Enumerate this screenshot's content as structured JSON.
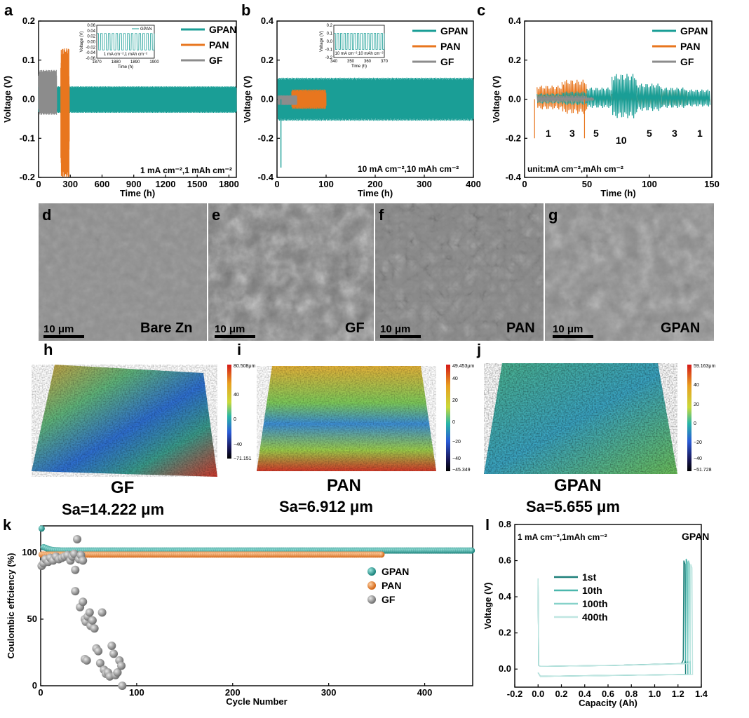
{
  "colors": {
    "GPAN": "#1a9e96",
    "PAN": "#e8761e",
    "GF": "#8c8c8c",
    "axis": "#000000"
  },
  "panels": {
    "a": {
      "letter": "a",
      "note": "1 mA cm⁻²,1 mAh cm⁻²",
      "inset_note": "1 mA cm⁻²,1 mAh cm⁻²",
      "inset_legend": "GPAN",
      "inset_xlabel": "Time (h)",
      "inset_ylabel": "Voltage (V)"
    },
    "b": {
      "letter": "b",
      "note": "10 mA cm⁻²,10 mAh cm⁻²",
      "inset_note": "10 mA cm⁻²,10 mAh cm⁻²",
      "inset_xlabel": "Time (h)",
      "inset_ylabel": "Voltage (V)"
    },
    "c": {
      "letter": "c",
      "note": "unit:mA cm⁻²,mAh cm⁻²",
      "rates": [
        "1",
        "3",
        "5",
        "10",
        "5",
        "3",
        "1"
      ]
    },
    "d": {
      "letter": "d",
      "label": "Bare Zn",
      "scale": "10 μm"
    },
    "e": {
      "letter": "e",
      "label": "GF",
      "scale": "10 μm"
    },
    "f": {
      "letter": "f",
      "label": "PAN",
      "scale": "10 μm"
    },
    "g": {
      "letter": "g",
      "label": "GPAN",
      "scale": "10 μm"
    },
    "h": {
      "letter": "h",
      "title": "GF",
      "sa": "Sa=14.222 μm",
      "cb_top": "80.508μm",
      "cb_bot": "−71.151",
      "cb_ticks": [
        "40",
        "0",
        "−40"
      ]
    },
    "i": {
      "letter": "i",
      "title": "PAN",
      "sa": "Sa=6.912 μm",
      "cb_top": "49.453μm",
      "cb_bot": "−45.349",
      "cb_ticks": [
        "40",
        "20",
        "0",
        "−20",
        "−40"
      ]
    },
    "j": {
      "letter": "j",
      "title": "GPAN",
      "sa": "Sa=5.655 μm",
      "cb_top": "59.163μm",
      "cb_bot": "−51.728",
      "cb_ticks": [
        "40",
        "20",
        "0",
        "−20",
        "−40"
      ]
    },
    "k": {
      "letter": "k"
    },
    "l": {
      "letter": "l",
      "note": "1 mA cm⁻²,1mAh cm⁻²",
      "tag": "GPAN"
    }
  },
  "chart_data": [
    {
      "id": "a",
      "type": "line",
      "xlabel": "Time (h)",
      "ylabel": "Voltage (V)",
      "xlim": [
        0,
        1870
      ],
      "ylim": [
        -0.2,
        0.2
      ],
      "xticks": [
        0,
        300,
        600,
        900,
        1200,
        1500,
        1800
      ],
      "yticks": [
        -0.2,
        -0.1,
        0.0,
        0.1,
        0.2
      ],
      "series": [
        {
          "name": "GPAN",
          "x_range": [
            0,
            1870
          ],
          "amplitude_upper": 0.033,
          "amplitude_lower": -0.035
        },
        {
          "name": "PAN",
          "x_range": [
            210,
            290
          ],
          "amplitude_upper": 0.13,
          "amplitude_lower": -0.2,
          "note": "short circuit near 285 h"
        },
        {
          "name": "GF",
          "x_range": [
            0,
            170
          ],
          "amplitude_upper": 0.075,
          "amplitude_lower": -0.04
        }
      ],
      "inset": {
        "xlim": [
          1870,
          1900
        ],
        "ylim": [
          -0.06,
          0.06
        ],
        "xticks": [
          1870,
          1880,
          1890,
          1900
        ],
        "yticks": [
          -0.06,
          -0.04,
          -0.02,
          0.0,
          0.02,
          0.04,
          0.06
        ],
        "cycle_period_h": 2
      }
    },
    {
      "id": "b",
      "type": "line",
      "xlabel": "Time (h)",
      "ylabel": "Voltage (V)",
      "xlim": [
        0,
        400
      ],
      "ylim": [
        -0.4,
        0.4
      ],
      "xticks": [
        0,
        100,
        200,
        300,
        400
      ],
      "yticks": [
        -0.4,
        -0.2,
        0.0,
        0.2,
        0.4
      ],
      "series": [
        {
          "name": "GPAN",
          "x_range": [
            0,
            400
          ],
          "amplitude_upper": 0.11,
          "amplitude_lower": -0.11
        },
        {
          "name": "PAN",
          "x_range": [
            0,
            100
          ],
          "amplitude_upper": 0.05,
          "amplitude_lower": -0.05
        },
        {
          "name": "GF",
          "x_range": [
            0,
            40
          ],
          "amplitude_upper": 0.02,
          "amplitude_lower": -0.03
        }
      ],
      "inset": {
        "xlim": [
          340,
          370
        ],
        "ylim": [
          -0.2,
          0.2
        ],
        "xticks": [
          340,
          350,
          360,
          370
        ],
        "yticks": [
          -0.2,
          -0.1,
          0.0,
          0.1,
          0.2
        ],
        "cycle_period_h": 2
      }
    },
    {
      "id": "c",
      "type": "line",
      "xlabel": "Time (h)",
      "ylabel": "Voltage (V)",
      "xlim": [
        0,
        150
      ],
      "ylim": [
        -0.4,
        0.4
      ],
      "xticks": [
        0,
        50,
        100,
        150
      ],
      "yticks": [
        -0.4,
        -0.2,
        0.0,
        0.2,
        0.4
      ],
      "series": [
        {
          "name": "GPAN",
          "segments": [
            [
              10,
              30,
              0.03
            ],
            [
              30,
              50,
              0.04
            ],
            [
              50,
              70,
              0.06
            ],
            [
              70,
              90,
              0.13
            ],
            [
              90,
              110,
              0.08
            ],
            [
              110,
              130,
              0.06
            ],
            [
              130,
              148,
              0.05
            ]
          ]
        },
        {
          "name": "PAN",
          "segments": [
            [
              10,
              30,
              0.07
            ],
            [
              30,
              50,
              0.1
            ],
            [
              50,
              70,
              0.03
            ],
            [
              70,
              90,
              0.03
            ],
            [
              90,
              110,
              0.05
            ],
            [
              110,
              130,
              0.05
            ],
            [
              130,
              148,
              0.02
            ]
          ]
        },
        {
          "name": "GF",
          "segments": [
            [
              10,
              30,
              0.02
            ],
            [
              30,
              50,
              0.02
            ],
            [
              50,
              55,
              0.01
            ]
          ]
        }
      ]
    },
    {
      "id": "k",
      "type": "scatter",
      "xlabel": "Cycle Number",
      "ylabel": "Coulombic effciency (%)",
      "xlim": [
        0,
        450
      ],
      "ylim": [
        0,
        120
      ],
      "xticks": [
        0,
        100,
        200,
        300,
        400
      ],
      "yticks": [
        0,
        50,
        100
      ],
      "series": [
        {
          "name": "GPAN",
          "x_range": [
            1,
            450
          ],
          "values_start": [
            118,
            108,
            104,
            102
          ],
          "plateau": 101.5
        },
        {
          "name": "PAN",
          "x_range": [
            1,
            355
          ],
          "plateau": 98.5
        },
        {
          "name": "GF",
          "points": [
            [
              1,
              90
            ],
            [
              3,
              92
            ],
            [
              5,
              95
            ],
            [
              8,
              93
            ],
            [
              10,
              96
            ],
            [
              13,
              94
            ],
            [
              16,
              97
            ],
            [
              19,
              95
            ],
            [
              22,
              96
            ],
            [
              25,
              97
            ],
            [
              28,
              98
            ],
            [
              31,
              94
            ],
            [
              33,
              97
            ],
            [
              35,
              99
            ],
            [
              36,
              87
            ],
            [
              38,
              110
            ],
            [
              40,
              95
            ],
            [
              42,
              98
            ],
            [
              44,
              94
            ],
            [
              36,
              71
            ],
            [
              41,
              59
            ],
            [
              44,
              63
            ],
            [
              46,
              50
            ],
            [
              47,
              48
            ],
            [
              49,
              52
            ],
            [
              51,
              55
            ],
            [
              52,
              45
            ],
            [
              54,
              49
            ],
            [
              56,
              43
            ],
            [
              58,
              28
            ],
            [
              60,
              26
            ],
            [
              62,
              17
            ],
            [
              64,
              55
            ],
            [
              66,
              12
            ],
            [
              68,
              9
            ],
            [
              70,
              10
            ],
            [
              72,
              7
            ],
            [
              74,
              30
            ],
            [
              76,
              24
            ],
            [
              78,
              8
            ],
            [
              80,
              10
            ],
            [
              82,
              19
            ],
            [
              84,
              15
            ],
            [
              46,
              20
            ],
            [
              48,
              19
            ],
            [
              85,
              0
            ]
          ]
        }
      ]
    },
    {
      "id": "l",
      "type": "line",
      "xlabel": "Capacity (Ah)",
      "ylabel": "Voltage (V)",
      "xlim": [
        -0.2,
        1.4
      ],
      "ylim": [
        -0.1,
        0.8
      ],
      "xticks": [
        -0.2,
        0.0,
        0.2,
        0.4,
        0.6,
        0.8,
        1.0,
        1.2,
        1.4
      ],
      "yticks": [
        0.0,
        0.2,
        0.4,
        0.6,
        0.8
      ],
      "series": [
        {
          "name": "1st",
          "end_capacity": 1.26,
          "peak_voltage": 0.6
        },
        {
          "name": "10th",
          "end_capacity": 1.28,
          "peak_voltage": 0.61
        },
        {
          "name": "100th",
          "end_capacity": 1.3,
          "peak_voltage": 0.6
        },
        {
          "name": "400th",
          "end_capacity": 1.32,
          "peak_voltage": 0.58
        }
      ]
    }
  ]
}
